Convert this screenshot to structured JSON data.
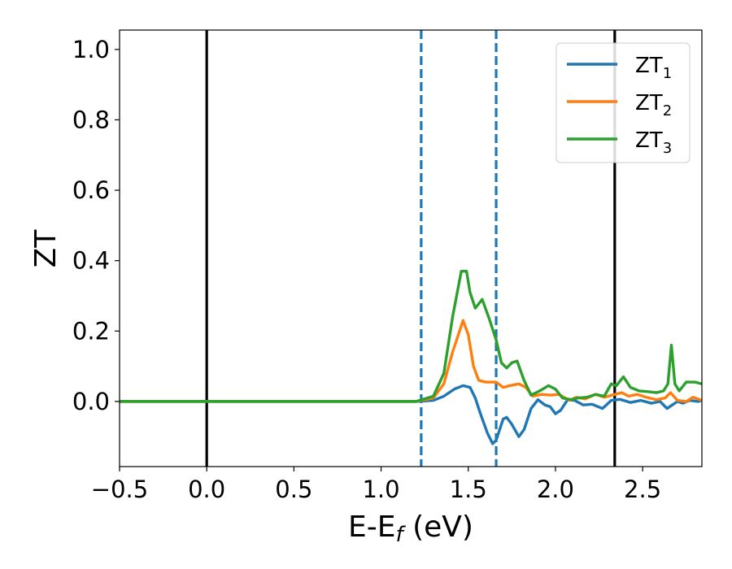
{
  "chart_data": {
    "type": "line",
    "xlabel": "E-E",
    "xlabel_sub": "f",
    "xlabel_unit": " (eV)",
    "ylabel": "ZT",
    "xlim": [
      -0.5,
      2.84
    ],
    "ylim": [
      -0.185,
      1.055
    ],
    "xticks": [
      -0.5,
      0.0,
      0.5,
      1.0,
      1.5,
      2.0,
      2.5
    ],
    "xtick_labels": [
      "−0.5",
      "0.0",
      "0.5",
      "1.0",
      "1.5",
      "2.0",
      "2.5"
    ],
    "yticks": [
      0.0,
      0.2,
      0.4,
      0.6,
      0.8,
      1.0
    ],
    "ytick_labels": [
      "0.0",
      "0.2",
      "0.4",
      "0.6",
      "0.8",
      "1.0"
    ],
    "legend_position": "top-right",
    "vertical_lines": [
      {
        "x": 0.0,
        "style": "solid",
        "color": "#000000"
      },
      {
        "x": 2.34,
        "style": "solid",
        "color": "#000000"
      },
      {
        "x": 1.23,
        "style": "dashed",
        "color": "#1f77b4"
      },
      {
        "x": 1.66,
        "style": "dashed",
        "color": "#1f77b4"
      }
    ],
    "series": [
      {
        "name": "ZT",
        "name_sub": "1",
        "color": "#1f77b4",
        "points": [
          [
            -0.5,
            0
          ],
          [
            1.2,
            0
          ],
          [
            1.3,
            0.003
          ],
          [
            1.36,
            0.015
          ],
          [
            1.42,
            0.035
          ],
          [
            1.47,
            0.045
          ],
          [
            1.51,
            0.04
          ],
          [
            1.54,
            0.01
          ],
          [
            1.57,
            -0.035
          ],
          [
            1.61,
            -0.09
          ],
          [
            1.64,
            -0.12
          ],
          [
            1.66,
            -0.11
          ],
          [
            1.7,
            -0.05
          ],
          [
            1.72,
            -0.045
          ],
          [
            1.75,
            -0.065
          ],
          [
            1.79,
            -0.1
          ],
          [
            1.82,
            -0.08
          ],
          [
            1.86,
            -0.02
          ],
          [
            1.9,
            0.005
          ],
          [
            1.94,
            -0.01
          ],
          [
            1.97,
            -0.015
          ],
          [
            2.0,
            -0.035
          ],
          [
            2.03,
            -0.025
          ],
          [
            2.07,
            0.005
          ],
          [
            2.11,
            0.003
          ],
          [
            2.16,
            -0.01
          ],
          [
            2.21,
            -0.008
          ],
          [
            2.27,
            -0.02
          ],
          [
            2.32,
            0.003
          ],
          [
            2.37,
            0.006
          ],
          [
            2.43,
            -0.003
          ],
          [
            2.49,
            0.003
          ],
          [
            2.55,
            -0.005
          ],
          [
            2.6,
            0.0
          ],
          [
            2.64,
            -0.02
          ],
          [
            2.67,
            -0.01
          ],
          [
            2.7,
            0.0
          ],
          [
            2.73,
            -0.005
          ],
          [
            2.77,
            0.003
          ],
          [
            2.82,
            0.0
          ],
          [
            2.84,
            0.003
          ]
        ]
      },
      {
        "name": "ZT",
        "name_sub": "2",
        "color": "#ff7f0e",
        "points": [
          [
            -0.5,
            0
          ],
          [
            1.2,
            0
          ],
          [
            1.3,
            0.01
          ],
          [
            1.36,
            0.05
          ],
          [
            1.41,
            0.14
          ],
          [
            1.47,
            0.23
          ],
          [
            1.5,
            0.19
          ],
          [
            1.53,
            0.1
          ],
          [
            1.56,
            0.06
          ],
          [
            1.6,
            0.055
          ],
          [
            1.66,
            0.055
          ],
          [
            1.7,
            0.04
          ],
          [
            1.74,
            0.045
          ],
          [
            1.79,
            0.05
          ],
          [
            1.83,
            0.04
          ],
          [
            1.87,
            0.015
          ],
          [
            1.92,
            0.02
          ],
          [
            1.97,
            0.018
          ],
          [
            2.02,
            0.02
          ],
          [
            2.08,
            0.003
          ],
          [
            2.12,
            0.012
          ],
          [
            2.17,
            0.007
          ],
          [
            2.23,
            0.02
          ],
          [
            2.28,
            0.012
          ],
          [
            2.34,
            0.02
          ],
          [
            2.38,
            0.025
          ],
          [
            2.42,
            0.015
          ],
          [
            2.47,
            0.02
          ],
          [
            2.52,
            0.012
          ],
          [
            2.58,
            0.005
          ],
          [
            2.63,
            0.01
          ],
          [
            2.66,
            0.025
          ],
          [
            2.7,
            0.003
          ],
          [
            2.75,
            0.0
          ],
          [
            2.79,
            0.012
          ],
          [
            2.84,
            0.003
          ]
        ]
      },
      {
        "name": "ZT",
        "name_sub": "3",
        "color": "#2ca02c",
        "points": [
          [
            -0.5,
            0
          ],
          [
            1.2,
            0
          ],
          [
            1.3,
            0.015
          ],
          [
            1.36,
            0.08
          ],
          [
            1.41,
            0.24
          ],
          [
            1.46,
            0.37
          ],
          [
            1.49,
            0.37
          ],
          [
            1.51,
            0.31
          ],
          [
            1.54,
            0.265
          ],
          [
            1.58,
            0.29
          ],
          [
            1.62,
            0.235
          ],
          [
            1.66,
            0.175
          ],
          [
            1.69,
            0.11
          ],
          [
            1.72,
            0.095
          ],
          [
            1.75,
            0.11
          ],
          [
            1.78,
            0.115
          ],
          [
            1.82,
            0.06
          ],
          [
            1.86,
            0.018
          ],
          [
            1.91,
            0.03
          ],
          [
            1.96,
            0.045
          ],
          [
            2.0,
            0.035
          ],
          [
            2.04,
            0.01
          ],
          [
            2.09,
            0.005
          ],
          [
            2.13,
            0.01
          ],
          [
            2.18,
            0.012
          ],
          [
            2.23,
            0.02
          ],
          [
            2.28,
            0.015
          ],
          [
            2.32,
            0.05
          ],
          [
            2.35,
            0.045
          ],
          [
            2.39,
            0.07
          ],
          [
            2.43,
            0.04
          ],
          [
            2.48,
            0.03
          ],
          [
            2.53,
            0.028
          ],
          [
            2.58,
            0.025
          ],
          [
            2.62,
            0.03
          ],
          [
            2.645,
            0.05
          ],
          [
            2.665,
            0.16
          ],
          [
            2.685,
            0.05
          ],
          [
            2.71,
            0.03
          ],
          [
            2.75,
            0.055
          ],
          [
            2.8,
            0.055
          ],
          [
            2.84,
            0.05
          ]
        ]
      }
    ]
  }
}
